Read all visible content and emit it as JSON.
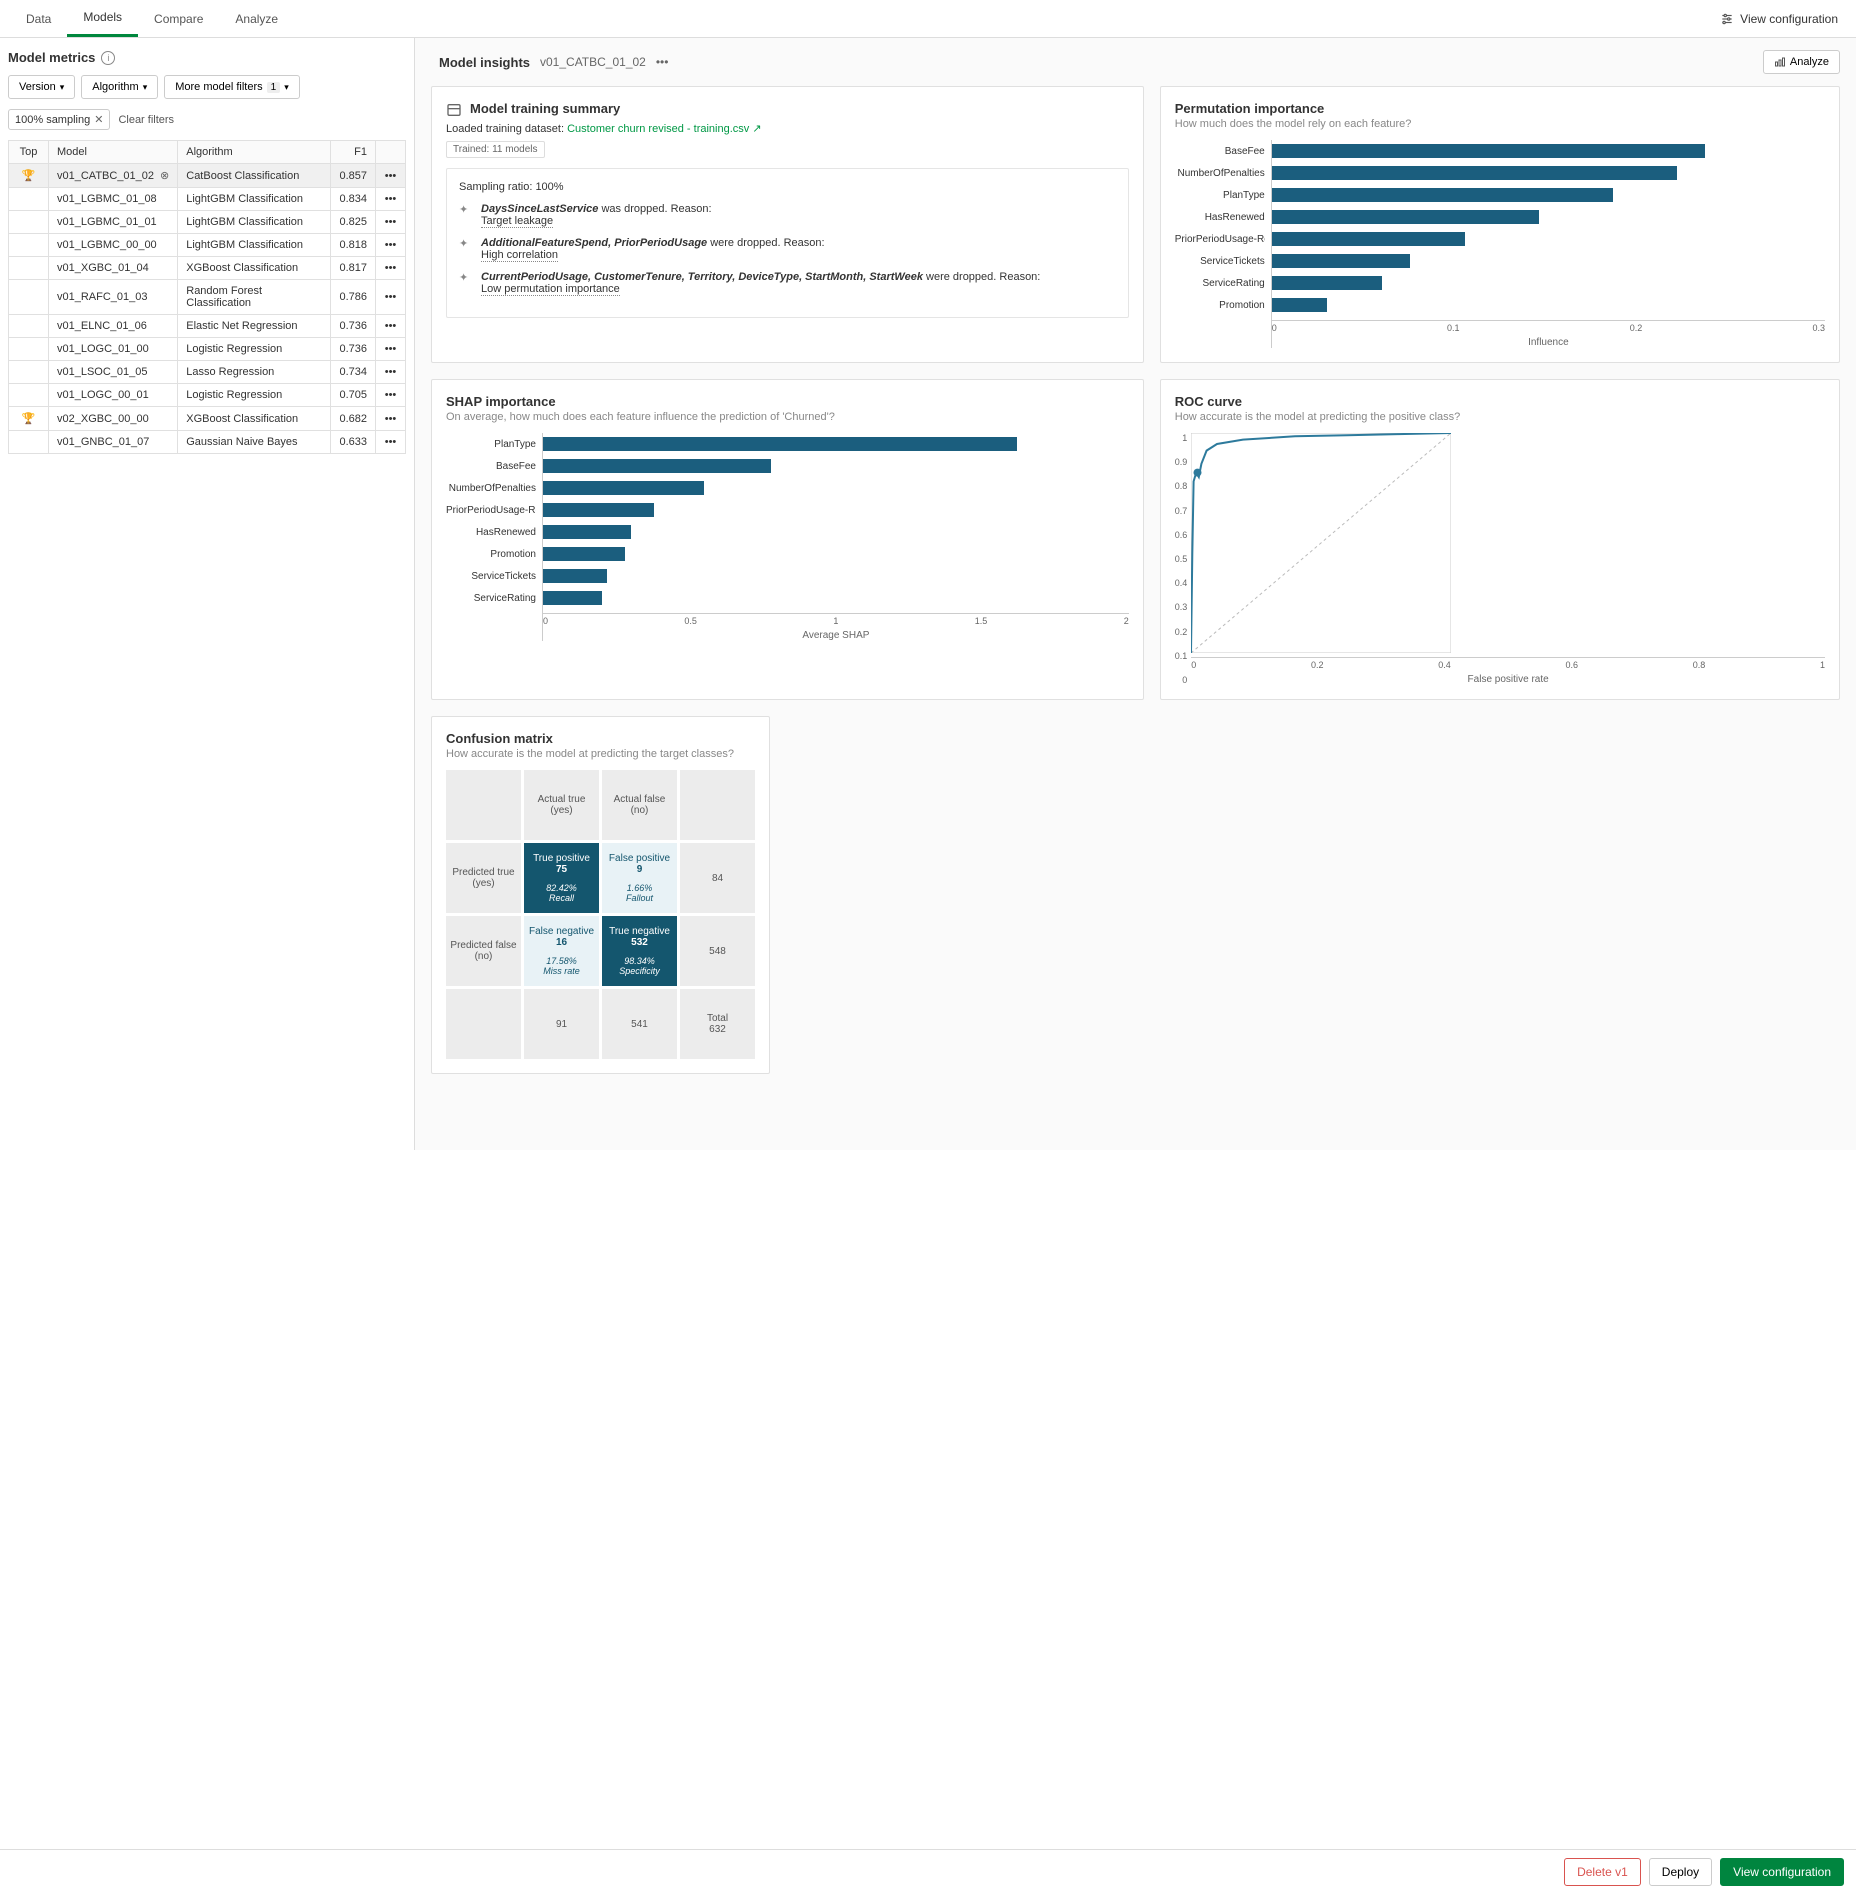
{
  "colors": {
    "bar": "#1b5e7e",
    "accent_green": "#00873d",
    "roc_line": "#2d7a9c",
    "grid": "#e0e0e0",
    "card_bg": "#ffffff",
    "page_bg": "#fafafa",
    "conf_dark": "#14566e",
    "conf_light": "#e8f2f6",
    "conf_grey": "#ececec"
  },
  "tabs": [
    "Data",
    "Models",
    "Compare",
    "Analyze"
  ],
  "active_tab": "Models",
  "top_right": "View configuration",
  "left": {
    "title": "Model metrics",
    "filters": {
      "version": "Version",
      "algorithm": "Algorithm",
      "more": "More model filters",
      "more_count": "1"
    },
    "chip": "100% sampling",
    "clear": "Clear filters",
    "columns": {
      "top": "Top",
      "model": "Model",
      "algorithm": "Algorithm",
      "f1": "F1"
    },
    "rows": [
      {
        "top": true,
        "model": "v01_CATBC_01_02",
        "algorithm": "CatBoost Classification",
        "f1": "0.857",
        "selected": true,
        "pin": true
      },
      {
        "top": false,
        "model": "v01_LGBMC_01_08",
        "algorithm": "LightGBM Classification",
        "f1": "0.834"
      },
      {
        "top": false,
        "model": "v01_LGBMC_01_01",
        "algorithm": "LightGBM Classification",
        "f1": "0.825"
      },
      {
        "top": false,
        "model": "v01_LGBMC_00_00",
        "algorithm": "LightGBM Classification",
        "f1": "0.818"
      },
      {
        "top": false,
        "model": "v01_XGBC_01_04",
        "algorithm": "XGBoost Classification",
        "f1": "0.817"
      },
      {
        "top": false,
        "model": "v01_RAFC_01_03",
        "algorithm": "Random Forest Classification",
        "f1": "0.786"
      },
      {
        "top": false,
        "model": "v01_ELNC_01_06",
        "algorithm": "Elastic Net Regression",
        "f1": "0.736"
      },
      {
        "top": false,
        "model": "v01_LOGC_01_00",
        "algorithm": "Logistic Regression",
        "f1": "0.736"
      },
      {
        "top": false,
        "model": "v01_LSOC_01_05",
        "algorithm": "Lasso Regression",
        "f1": "0.734"
      },
      {
        "top": false,
        "model": "v01_LOGC_00_01",
        "algorithm": "Logistic Regression",
        "f1": "0.705"
      },
      {
        "top": true,
        "model": "v02_XGBC_00_00",
        "algorithm": "XGBoost Classification",
        "f1": "0.682"
      },
      {
        "top": false,
        "model": "v01_GNBC_01_07",
        "algorithm": "Gaussian Naive Bayes",
        "f1": "0.633"
      }
    ]
  },
  "insights": {
    "title": "Model insights",
    "model_id": "v01_CATBC_01_02",
    "analyze_btn": "Analyze"
  },
  "training": {
    "title": "Model training summary",
    "loaded_label": "Loaded training dataset:",
    "dataset": "Customer churn revised - training.csv",
    "trained_badge": "Trained: 11 models",
    "sampling_label": "Sampling ratio:",
    "sampling_value": "100%",
    "drops": [
      {
        "features": "DaysSinceLastService",
        "suffix": " was dropped. Reason: ",
        "reason": "Target leakage"
      },
      {
        "features": "AdditionalFeatureSpend, PriorPeriodUsage",
        "suffix": " were dropped. Reason:",
        "reason": "High correlation"
      },
      {
        "features": "CurrentPeriodUsage, CustomerTenure, Territory, DeviceType, StartMonth, StartWeek",
        "suffix": " were dropped. Reason:",
        "reason": "Low permutation importance"
      }
    ]
  },
  "perm": {
    "title": "Permutation importance",
    "sub": "How much does the model rely on each feature?",
    "max": 0.3,
    "ticks": [
      "0",
      "0.1",
      "0.2",
      "0.3"
    ],
    "xlabel": "Influence",
    "items": [
      {
        "label": "BaseFee",
        "value": 0.235
      },
      {
        "label": "NumberOfPenalties",
        "value": 0.22
      },
      {
        "label": "PlanType",
        "value": 0.185
      },
      {
        "label": "HasRenewed",
        "value": 0.145
      },
      {
        "label": "PriorPeriodUsage-Rou...",
        "value": 0.105
      },
      {
        "label": "ServiceTickets",
        "value": 0.075
      },
      {
        "label": "ServiceRating",
        "value": 0.06
      },
      {
        "label": "Promotion",
        "value": 0.03
      }
    ]
  },
  "shap": {
    "title": "SHAP importance",
    "sub": "On average, how much does each feature influence the prediction of 'Churned'?",
    "max": 2,
    "ticks": [
      "0",
      "0.5",
      "1",
      "1.5",
      "2"
    ],
    "xlabel": "Average SHAP",
    "items": [
      {
        "label": "PlanType",
        "value": 1.62
      },
      {
        "label": "BaseFee",
        "value": 0.78
      },
      {
        "label": "NumberOfPenalties",
        "value": 0.55
      },
      {
        "label": "PriorPeriodUsage-Rou...",
        "value": 0.38
      },
      {
        "label": "HasRenewed",
        "value": 0.3
      },
      {
        "label": "Promotion",
        "value": 0.28
      },
      {
        "label": "ServiceTickets",
        "value": 0.22
      },
      {
        "label": "ServiceRating",
        "value": 0.2
      }
    ]
  },
  "roc": {
    "title": "ROC curve",
    "sub": "How accurate is the model at predicting the positive class?",
    "xlabel": "False positive rate",
    "yticks": [
      "1",
      "0.9",
      "0.8",
      "0.7",
      "0.6",
      "0.5",
      "0.4",
      "0.3",
      "0.2",
      "0.1",
      "0"
    ],
    "xticks": [
      "0",
      "0.2",
      "0.4",
      "0.6",
      "0.8",
      "1"
    ],
    "curve": [
      [
        0,
        0
      ],
      [
        0.005,
        0.45
      ],
      [
        0.01,
        0.78
      ],
      [
        0.02,
        0.82
      ],
      [
        0.03,
        0.8
      ],
      [
        0.04,
        0.86
      ],
      [
        0.06,
        0.92
      ],
      [
        0.1,
        0.95
      ],
      [
        0.2,
        0.97
      ],
      [
        0.4,
        0.985
      ],
      [
        0.6,
        0.99
      ],
      [
        0.8,
        0.995
      ],
      [
        1,
        1
      ]
    ],
    "marker": [
      0.025,
      0.82
    ]
  },
  "confusion": {
    "title": "Confusion matrix",
    "sub": "How accurate is the model at predicting the target classes?",
    "labels": {
      "actual_true": "Actual true (yes)",
      "actual_false": "Actual false (no)",
      "pred_true": "Predicted true (yes)",
      "pred_false": "Predicted false (no)",
      "total": "Total"
    },
    "cells": {
      "tp": {
        "label": "True positive",
        "value": "75",
        "pct": "82.42%",
        "metric": "Recall"
      },
      "fp": {
        "label": "False positive",
        "value": "9",
        "pct": "1.66%",
        "metric": "Fallout"
      },
      "fn": {
        "label": "False negative",
        "value": "16",
        "pct": "17.58%",
        "metric": "Miss rate"
      },
      "tn": {
        "label": "True negative",
        "value": "532",
        "pct": "98.34%",
        "metric": "Specificity"
      },
      "row1_total": "84",
      "row2_total": "548",
      "col1_total": "91",
      "col2_total": "541",
      "grand_total": "632"
    }
  },
  "footer": {
    "delete": "Delete v1",
    "deploy": "Deploy",
    "view_config": "View configuration"
  }
}
